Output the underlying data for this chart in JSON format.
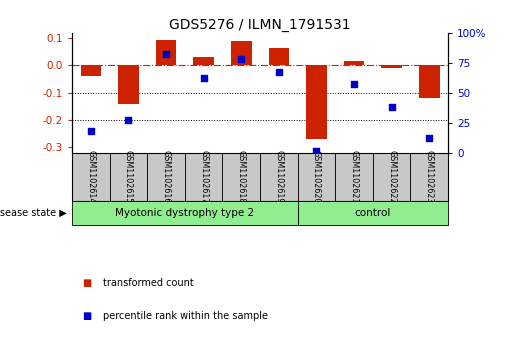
{
  "title": "GDS5276 / ILMN_1791531",
  "samples": [
    "GSM1102614",
    "GSM1102615",
    "GSM1102616",
    "GSM1102617",
    "GSM1102618",
    "GSM1102619",
    "GSM1102620",
    "GSM1102621",
    "GSM1102622",
    "GSM1102623"
  ],
  "red_bars": [
    -0.04,
    -0.14,
    0.095,
    0.03,
    0.09,
    0.065,
    -0.27,
    0.015,
    -0.01,
    -0.12
  ],
  "blue_dots_pct": [
    18.5,
    27,
    82,
    62,
    78,
    67,
    2,
    57,
    38,
    12
  ],
  "ylim_left": [
    -0.32,
    0.12
  ],
  "ylim_right": [
    0,
    100
  ],
  "yticks_left": [
    -0.3,
    -0.2,
    -0.1,
    0.0,
    0.1
  ],
  "yticks_right": [
    0,
    25,
    50,
    75,
    100
  ],
  "ytick_labels_right": [
    "0",
    "25",
    "50",
    "75",
    "100%"
  ],
  "group_boundary": 6,
  "group1_label": "Myotonic dystrophy type 2",
  "group2_label": "control",
  "legend_red": "transformed count",
  "legend_blue": "percentile rank within the sample",
  "disease_state_label": "disease state",
  "hline_y": 0.0,
  "dotted_lines": [
    -0.1,
    -0.2
  ],
  "bar_color": "#CC2200",
  "dot_color": "#0000CC",
  "hline_color": "#CC2200",
  "bar_width": 0.55,
  "green_color": "#90EE90",
  "gray_color": "#D3D3D3",
  "label_box_color": "#C8C8C8"
}
